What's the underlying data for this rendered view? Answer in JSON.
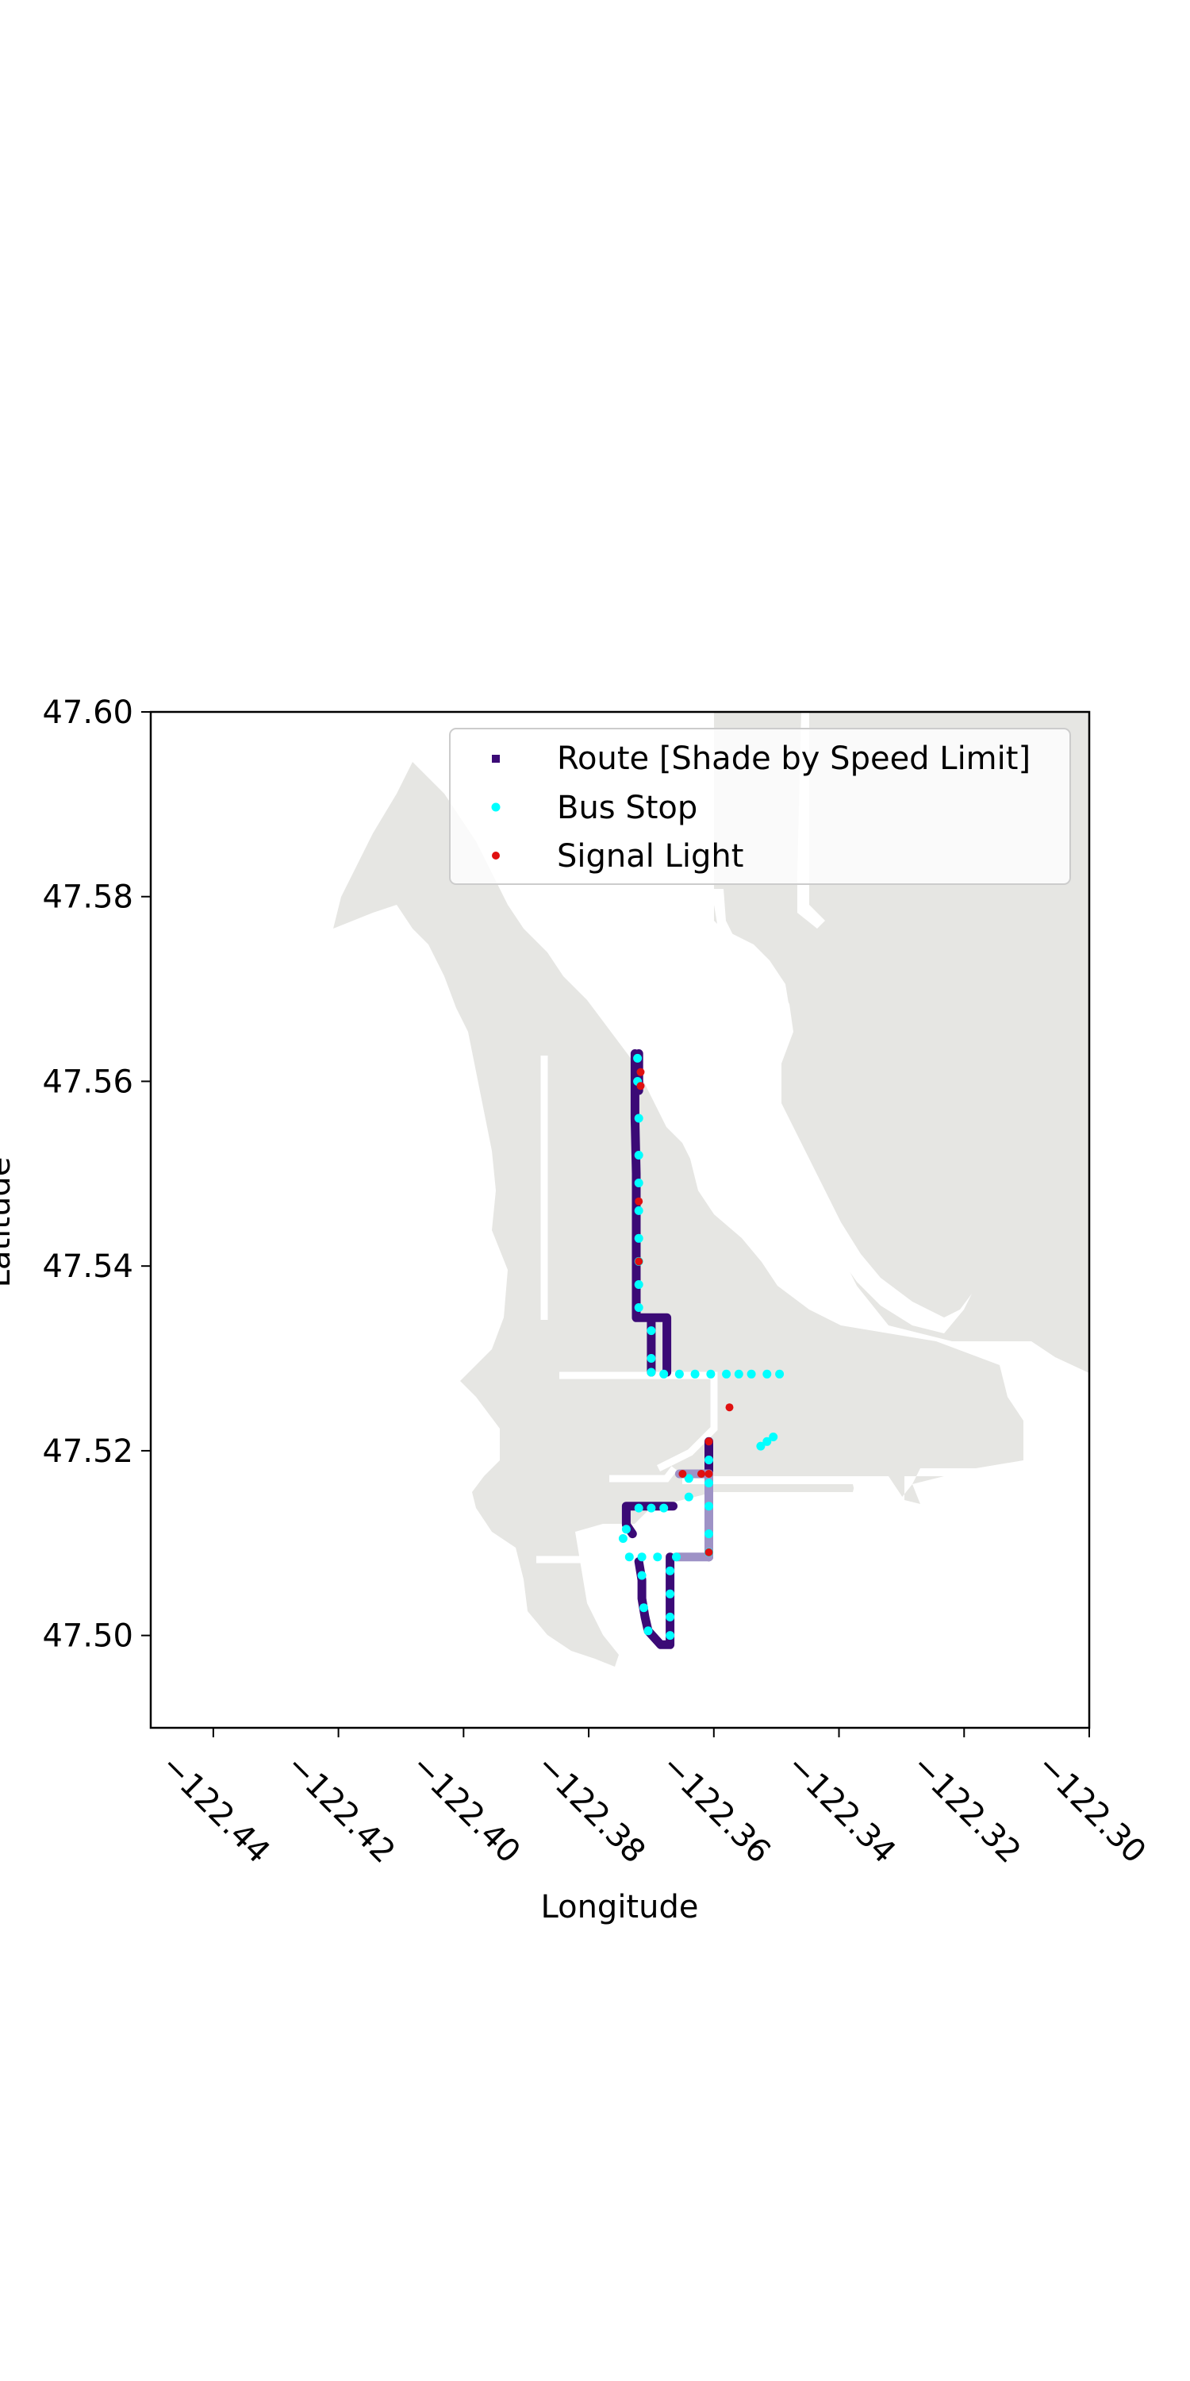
{
  "chart_data": {
    "type": "scatter",
    "title": "",
    "xlabel": "Longitude",
    "ylabel": "Latitude",
    "xlim": [
      -122.45,
      -122.3
    ],
    "ylim": [
      47.49,
      47.6
    ],
    "xticks": [
      -122.44,
      -122.42,
      -122.4,
      -122.38,
      -122.36,
      -122.34,
      -122.32,
      -122.3
    ],
    "xtick_labels": [
      "−122.44",
      "−122.42",
      "−122.40",
      "−122.38",
      "−122.36",
      "−122.34",
      "−122.32",
      "−122.30"
    ],
    "yticks": [
      47.5,
      47.52,
      47.54,
      47.56,
      47.58,
      47.6
    ],
    "ytick_labels": [
      "47.50",
      "47.52",
      "47.54",
      "47.56",
      "47.58",
      "47.60"
    ],
    "grid": false,
    "legend_position": "top-right",
    "colors": {
      "land": "#e6e6e3",
      "road": "#ffffff",
      "route_dark": "#3b0a76",
      "route_light": "#9e92c6",
      "bus_stop": "#00ffff",
      "signal": "#e01010"
    },
    "series": [
      {
        "name": "Route [Shade by Speed Limit]",
        "color": "#3b0a76",
        "segments": [
          {
            "shade": "dark",
            "x": [
              -122.372,
              -122.372,
              -122.3726,
              -122.3726,
              -122.3726,
              -122.3724,
              -122.3724,
              -122.37,
              -122.37,
              -122.37,
              -122.3675,
              -122.3675
            ],
            "y": [
              47.563,
              47.559,
              47.559,
              47.563,
              47.556,
              47.55,
              47.5344,
              47.5344,
              47.5285,
              47.5344,
              47.5344,
              47.5285
            ]
          },
          {
            "shade": "dark",
            "x": [
              -122.3608,
              -122.3608,
              -122.3608,
              -122.3608
            ],
            "y": [
              47.521,
              47.5175,
              47.515,
              47.5085
            ]
          },
          {
            "shade": "light",
            "x": [
              -122.3608,
              -122.3608,
              -122.3608,
              -122.3608,
              -122.366
            ],
            "y": [
              47.5175,
              47.515,
              47.512,
              47.5085,
              47.5085
            ]
          },
          {
            "shade": "light",
            "x": [
              -122.3608,
              -122.3655
            ],
            "y": [
              47.5175,
              47.5175
            ]
          },
          {
            "shade": "dark",
            "x": [
              -122.373,
              -122.374,
              -122.374,
              -122.3665
            ],
            "y": [
              47.511,
              47.512,
              47.514,
              47.514
            ]
          },
          {
            "shade": "dark",
            "x": [
              -122.367,
              -122.367,
              -122.367,
              -122.3685,
              -122.3705,
              -122.371,
              -122.3715,
              -122.3715,
              -122.372
            ],
            "y": [
              47.5085,
              47.504,
              47.499,
              47.499,
              47.5005,
              47.502,
              47.504,
              47.506,
              47.508
            ]
          }
        ]
      },
      {
        "name": "Bus Stop",
        "color": "#00ffff",
        "points": [
          [
            -122.3722,
            47.5625
          ],
          [
            -122.3722,
            47.56
          ],
          [
            -122.372,
            47.556
          ],
          [
            -122.372,
            47.552
          ],
          [
            -122.372,
            47.549
          ],
          [
            -122.372,
            47.546
          ],
          [
            -122.372,
            47.543
          ],
          [
            -122.372,
            47.5405
          ],
          [
            -122.372,
            47.538
          ],
          [
            -122.372,
            47.5355
          ],
          [
            -122.37,
            47.533
          ],
          [
            -122.37,
            47.53
          ],
          [
            -122.37,
            47.5285
          ],
          [
            -122.368,
            47.5283
          ],
          [
            -122.3655,
            47.5283
          ],
          [
            -122.363,
            47.5283
          ],
          [
            -122.3605,
            47.5283
          ],
          [
            -122.358,
            47.5283
          ],
          [
            -122.356,
            47.5283
          ],
          [
            -122.354,
            47.5283
          ],
          [
            -122.3515,
            47.5283
          ],
          [
            -122.3495,
            47.5283
          ],
          [
            -122.3505,
            47.5215
          ],
          [
            -122.3515,
            47.521
          ],
          [
            -122.3525,
            47.5205
          ],
          [
            -122.3608,
            47.519
          ],
          [
            -122.3608,
            47.5165
          ],
          [
            -122.3608,
            47.514
          ],
          [
            -122.3608,
            47.511
          ],
          [
            -122.3608,
            47.509
          ],
          [
            -122.364,
            47.517
          ],
          [
            -122.364,
            47.515
          ],
          [
            -122.366,
            47.5085
          ],
          [
            -122.369,
            47.5085
          ],
          [
            -122.3715,
            47.5085
          ],
          [
            -122.3735,
            47.5085
          ],
          [
            -122.3745,
            47.5105
          ],
          [
            -122.374,
            47.5115
          ],
          [
            -122.372,
            47.5138
          ],
          [
            -122.37,
            47.5138
          ],
          [
            -122.368,
            47.5138
          ],
          [
            -122.367,
            47.507
          ],
          [
            -122.367,
            47.5045
          ],
          [
            -122.367,
            47.502
          ],
          [
            -122.367,
            47.5
          ],
          [
            -122.3705,
            47.5005
          ],
          [
            -122.3712,
            47.503
          ],
          [
            -122.3715,
            47.5065
          ]
        ]
      },
      {
        "name": "Signal Light",
        "color": "#e01010",
        "points": [
          [
            -122.3717,
            47.561
          ],
          [
            -122.3717,
            47.5595
          ],
          [
            -122.372,
            47.547
          ],
          [
            -122.372,
            47.5405
          ],
          [
            -122.3575,
            47.5247
          ],
          [
            -122.3608,
            47.521
          ],
          [
            -122.3608,
            47.5175
          ],
          [
            -122.3608,
            47.509
          ],
          [
            -122.365,
            47.5175
          ],
          [
            -122.362,
            47.5175
          ]
        ]
      }
    ]
  }
}
